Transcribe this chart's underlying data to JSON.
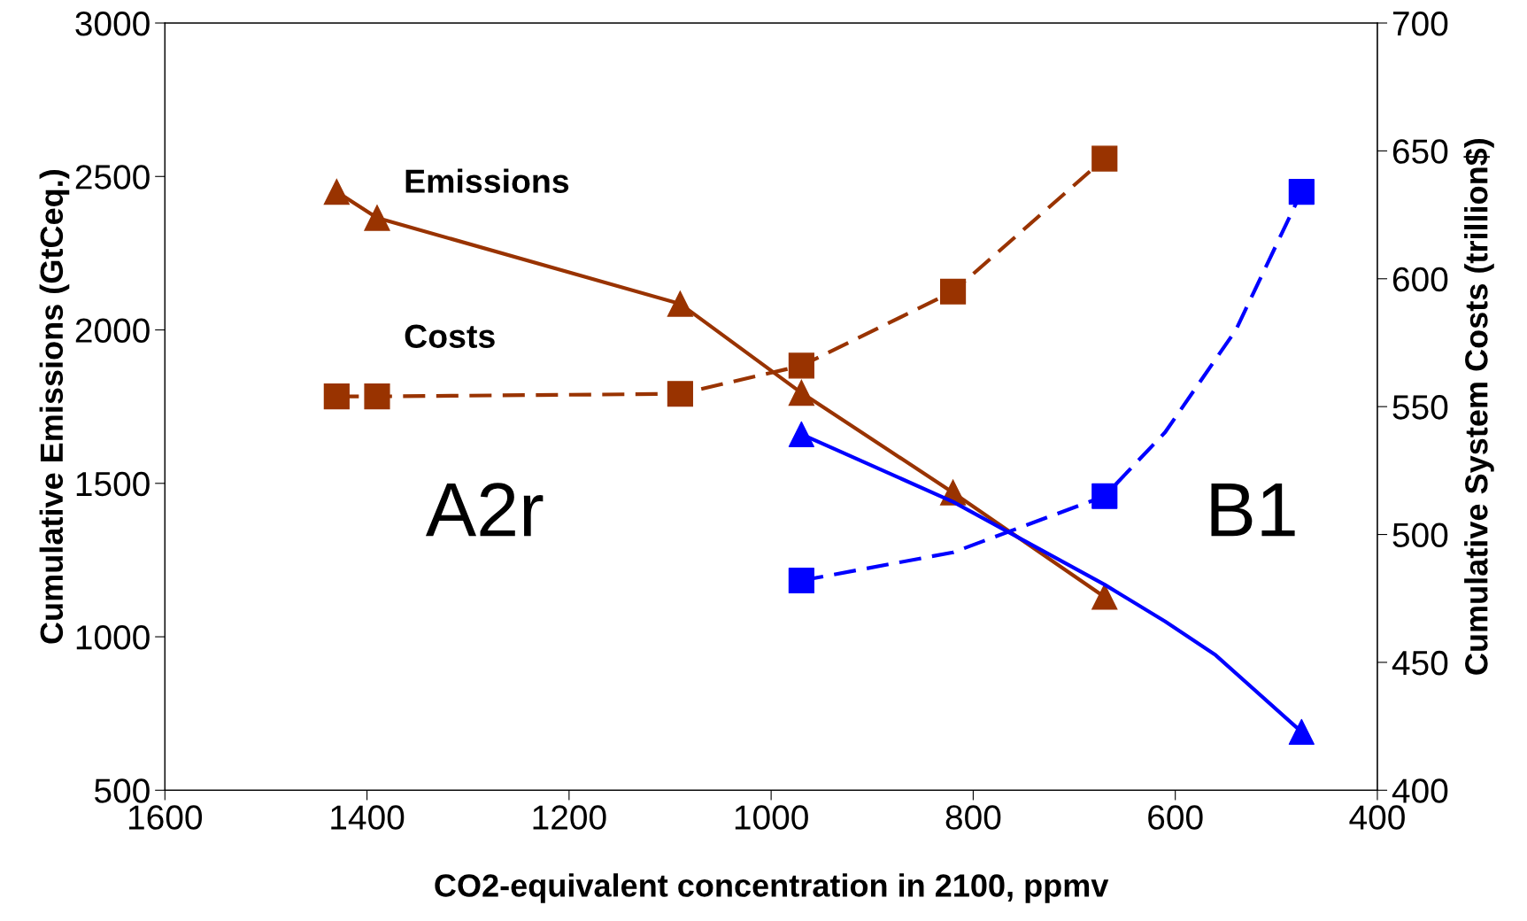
{
  "chart_data": {
    "type": "line",
    "xlabel": "CO2-equivalent concentration in 2100, ppmv",
    "ylabel": "Cumulative Emissions (GtCeq.)",
    "y2label": "Cumulative System Costs (trillion$)",
    "xlim": [
      1600,
      400
    ],
    "xticks": [
      1600,
      1400,
      1200,
      1000,
      800,
      600,
      400
    ],
    "ylim": [
      500,
      3000
    ],
    "yticks": [
      500,
      1000,
      1500,
      2000,
      2500,
      3000
    ],
    "y2lim": [
      400,
      700
    ],
    "y2ticks": [
      400,
      450,
      500,
      550,
      600,
      650,
      700
    ],
    "grid": false,
    "legend": false,
    "series": [
      {
        "color": "#993300",
        "line_style": "solid",
        "marker": "triangle",
        "x": [
          1430,
          1390,
          1090,
          970,
          820,
          670
        ],
        "values": [
          2450,
          2365,
          2085,
          1795,
          1470,
          1130
        ]
      },
      {
        "color": "#993300",
        "line_style": "dashed",
        "marker": "square",
        "axis": "y2",
        "x": [
          1430,
          1390,
          1090,
          970,
          820,
          670
        ],
        "values": [
          554,
          554,
          555,
          566,
          595,
          647
        ]
      },
      {
        "color": "#0000ff",
        "line_style": "solid",
        "marker": "none",
        "x": [
          970,
          820,
          670,
          610,
          560,
          475
        ],
        "values": [
          1660,
          1440,
          1170,
          1050,
          940,
          690
        ]
      },
      {
        "type": "scatter",
        "color": "#0000ff",
        "marker": "triangle",
        "x": [
          970,
          475
        ],
        "values": [
          1660,
          690
        ]
      },
      {
        "color": "#0000ff",
        "line_style": "dashed",
        "marker": "none",
        "axis": "y2",
        "x": [
          970,
          820,
          670,
          610,
          540,
          475
        ],
        "values": [
          482,
          493,
          515,
          540,
          580,
          634
        ]
      },
      {
        "type": "scatter",
        "color": "#0000ff",
        "marker": "square",
        "axis": "y2",
        "x": [
          970,
          670,
          475
        ],
        "values": [
          482,
          515,
          634
        ]
      }
    ],
    "annotations": [
      "Emissions",
      "Costs",
      "A2r",
      "B1"
    ]
  }
}
